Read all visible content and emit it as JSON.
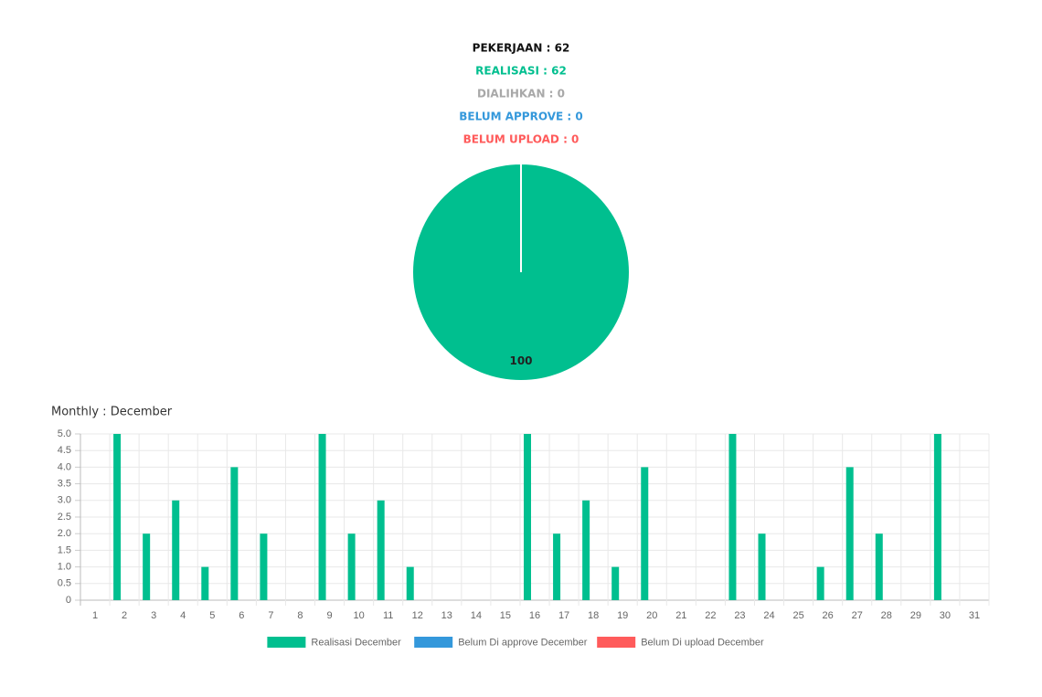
{
  "summary": [
    {
      "text": "PEKERJAAN : 62",
      "color": "#111111"
    },
    {
      "text": "REALISASI : 62",
      "color": "#00bf8f"
    },
    {
      "text": "DIALIHKAN : 0",
      "color": "#a8a8a8"
    },
    {
      "text": "BELUM APPROVE : 0",
      "color": "#3498db"
    },
    {
      "text": "BELUM UPLOAD : 0",
      "color": "#ff5b5b"
    }
  ],
  "chart_data": [
    {
      "type": "pie",
      "values": [
        100
      ],
      "colors": [
        "#00bf8f"
      ]
    },
    {
      "type": "bar",
      "title": "Monthly : December",
      "categories": [
        "1",
        "2",
        "3",
        "4",
        "5",
        "6",
        "7",
        "8",
        "9",
        "10",
        "11",
        "12",
        "13",
        "14",
        "15",
        "16",
        "17",
        "18",
        "19",
        "20",
        "21",
        "22",
        "23",
        "24",
        "25",
        "26",
        "27",
        "28",
        "29",
        "30",
        "31"
      ],
      "series": [
        {
          "name": "Realisasi December",
          "color": "#00bf8f",
          "values": [
            0,
            5,
            2,
            3,
            1,
            4,
            2,
            0,
            5,
            2,
            3,
            1,
            0,
            0,
            0,
            5,
            2,
            3,
            1,
            4,
            0,
            0,
            5,
            2,
            0,
            1,
            4,
            2,
            0,
            5,
            0
          ]
        },
        {
          "name": "Belum Di approve December",
          "color": "#3498db",
          "values": [
            0,
            0,
            0,
            0,
            0,
            0,
            0,
            0,
            0,
            0,
            0,
            0,
            0,
            0,
            0,
            0,
            0,
            0,
            0,
            0,
            0,
            0,
            0,
            0,
            0,
            0,
            0,
            0,
            0,
            0,
            0
          ]
        },
        {
          "name": "Belum Di upload December",
          "color": "#ff5b5b",
          "values": [
            0,
            0,
            0,
            0,
            0,
            0,
            0,
            0,
            0,
            0,
            0,
            0,
            0,
            0,
            0,
            0,
            0,
            0,
            0,
            0,
            0,
            0,
            0,
            0,
            0,
            0,
            0,
            0,
            0,
            0,
            0
          ]
        }
      ],
      "ylim": [
        0,
        5
      ],
      "yticks": [
        0,
        0.5,
        {
          "value": 1,
          "label": "1.0"
        },
        1.5,
        {
          "value": 2,
          "label": "2.0"
        },
        2.5,
        {
          "value": 3,
          "label": "3.0"
        },
        3.5,
        {
          "value": 4,
          "label": "4.0"
        },
        4.5,
        {
          "value": 5,
          "label": "5.0"
        }
      ],
      "grid": true,
      "legend": "bottom"
    }
  ]
}
